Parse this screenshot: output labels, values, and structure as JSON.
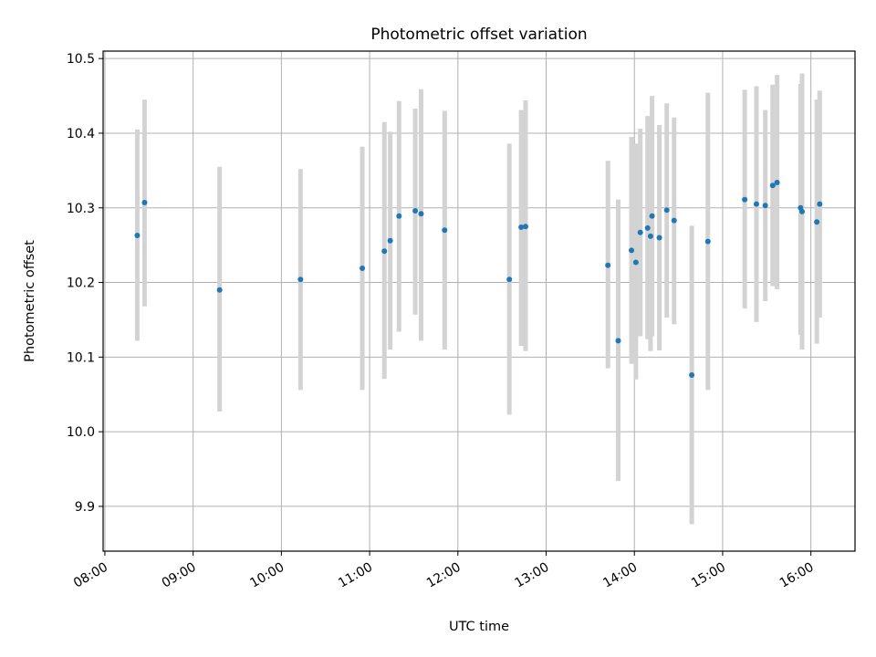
{
  "chart_data": {
    "type": "scatter",
    "title": "Photometric offset variation",
    "xlabel": "UTC time",
    "ylabel": "Photometric offset",
    "x_unit": "hours (UTC)",
    "xlim": [
      7.98,
      16.5
    ],
    "ylim": [
      9.84,
      10.51
    ],
    "x_ticks": [
      8,
      9,
      10,
      11,
      12,
      13,
      14,
      15,
      16
    ],
    "x_tick_labels": [
      "08:00",
      "09:00",
      "10:00",
      "11:00",
      "12:00",
      "13:00",
      "14:00",
      "15:00",
      "16:00"
    ],
    "y_ticks": [
      9.9,
      10.0,
      10.1,
      10.2,
      10.3,
      10.4,
      10.5
    ],
    "y_tick_labels": [
      "9.9",
      "10.0",
      "10.1",
      "10.2",
      "10.3",
      "10.4",
      "10.5"
    ],
    "grid": true,
    "colors": {
      "point": "#1f77b4",
      "errorbar": "#d3d3d3",
      "grid": "#b0b0b0"
    },
    "points": [
      {
        "x": 8.367,
        "y": 10.263,
        "ylo": 10.122,
        "yhi": 10.405
      },
      {
        "x": 8.45,
        "y": 10.307,
        "ylo": 10.168,
        "yhi": 10.445
      },
      {
        "x": 9.3,
        "y": 10.19,
        "ylo": 10.027,
        "yhi": 10.355
      },
      {
        "x": 10.217,
        "y": 10.204,
        "ylo": 10.056,
        "yhi": 10.352
      },
      {
        "x": 10.917,
        "y": 10.219,
        "ylo": 10.056,
        "yhi": 10.382
      },
      {
        "x": 11.167,
        "y": 10.242,
        "ylo": 10.071,
        "yhi": 10.415
      },
      {
        "x": 11.233,
        "y": 10.256,
        "ylo": 10.11,
        "yhi": 10.402
      },
      {
        "x": 11.333,
        "y": 10.289,
        "ylo": 10.134,
        "yhi": 10.443
      },
      {
        "x": 11.517,
        "y": 10.296,
        "ylo": 10.157,
        "yhi": 10.433
      },
      {
        "x": 11.583,
        "y": 10.292,
        "ylo": 10.122,
        "yhi": 10.459
      },
      {
        "x": 11.85,
        "y": 10.27,
        "ylo": 10.11,
        "yhi": 10.43
      },
      {
        "x": 12.583,
        "y": 10.204,
        "ylo": 10.023,
        "yhi": 10.386
      },
      {
        "x": 12.717,
        "y": 10.274,
        "ylo": 10.115,
        "yhi": 10.431
      },
      {
        "x": 12.767,
        "y": 10.275,
        "ylo": 10.108,
        "yhi": 10.444
      },
      {
        "x": 13.7,
        "y": 10.223,
        "ylo": 10.085,
        "yhi": 10.363
      },
      {
        "x": 13.817,
        "y": 10.122,
        "ylo": 9.934,
        "yhi": 10.311
      },
      {
        "x": 13.967,
        "y": 10.243,
        "ylo": 10.091,
        "yhi": 10.395
      },
      {
        "x": 14.017,
        "y": 10.227,
        "ylo": 10.07,
        "yhi": 10.386
      },
      {
        "x": 14.067,
        "y": 10.267,
        "ylo": 10.128,
        "yhi": 10.406
      },
      {
        "x": 14.15,
        "y": 10.273,
        "ylo": 10.124,
        "yhi": 10.423
      },
      {
        "x": 14.183,
        "y": 10.262,
        "ylo": 10.108,
        "yhi": 10.416
      },
      {
        "x": 14.2,
        "y": 10.289,
        "ylo": 10.128,
        "yhi": 10.45
      },
      {
        "x": 14.283,
        "y": 10.26,
        "ylo": 10.109,
        "yhi": 10.411
      },
      {
        "x": 14.367,
        "y": 10.297,
        "ylo": 10.153,
        "yhi": 10.44
      },
      {
        "x": 14.45,
        "y": 10.283,
        "ylo": 10.144,
        "yhi": 10.421
      },
      {
        "x": 14.65,
        "y": 10.076,
        "ylo": 9.876,
        "yhi": 10.276
      },
      {
        "x": 14.833,
        "y": 10.255,
        "ylo": 10.056,
        "yhi": 10.454
      },
      {
        "x": 15.25,
        "y": 10.311,
        "ylo": 10.165,
        "yhi": 10.458
      },
      {
        "x": 15.383,
        "y": 10.305,
        "ylo": 10.147,
        "yhi": 10.463
      },
      {
        "x": 15.483,
        "y": 10.303,
        "ylo": 10.175,
        "yhi": 10.431
      },
      {
        "x": 15.567,
        "y": 10.33,
        "ylo": 10.195,
        "yhi": 10.465
      },
      {
        "x": 15.617,
        "y": 10.334,
        "ylo": 10.191,
        "yhi": 10.478
      },
      {
        "x": 15.883,
        "y": 10.3,
        "ylo": 10.13,
        "yhi": 10.466
      },
      {
        "x": 15.9,
        "y": 10.295,
        "ylo": 10.11,
        "yhi": 10.48
      },
      {
        "x": 16.067,
        "y": 10.281,
        "ylo": 10.118,
        "yhi": 10.445
      },
      {
        "x": 16.1,
        "y": 10.305,
        "ylo": 10.153,
        "yhi": 10.457
      }
    ]
  }
}
